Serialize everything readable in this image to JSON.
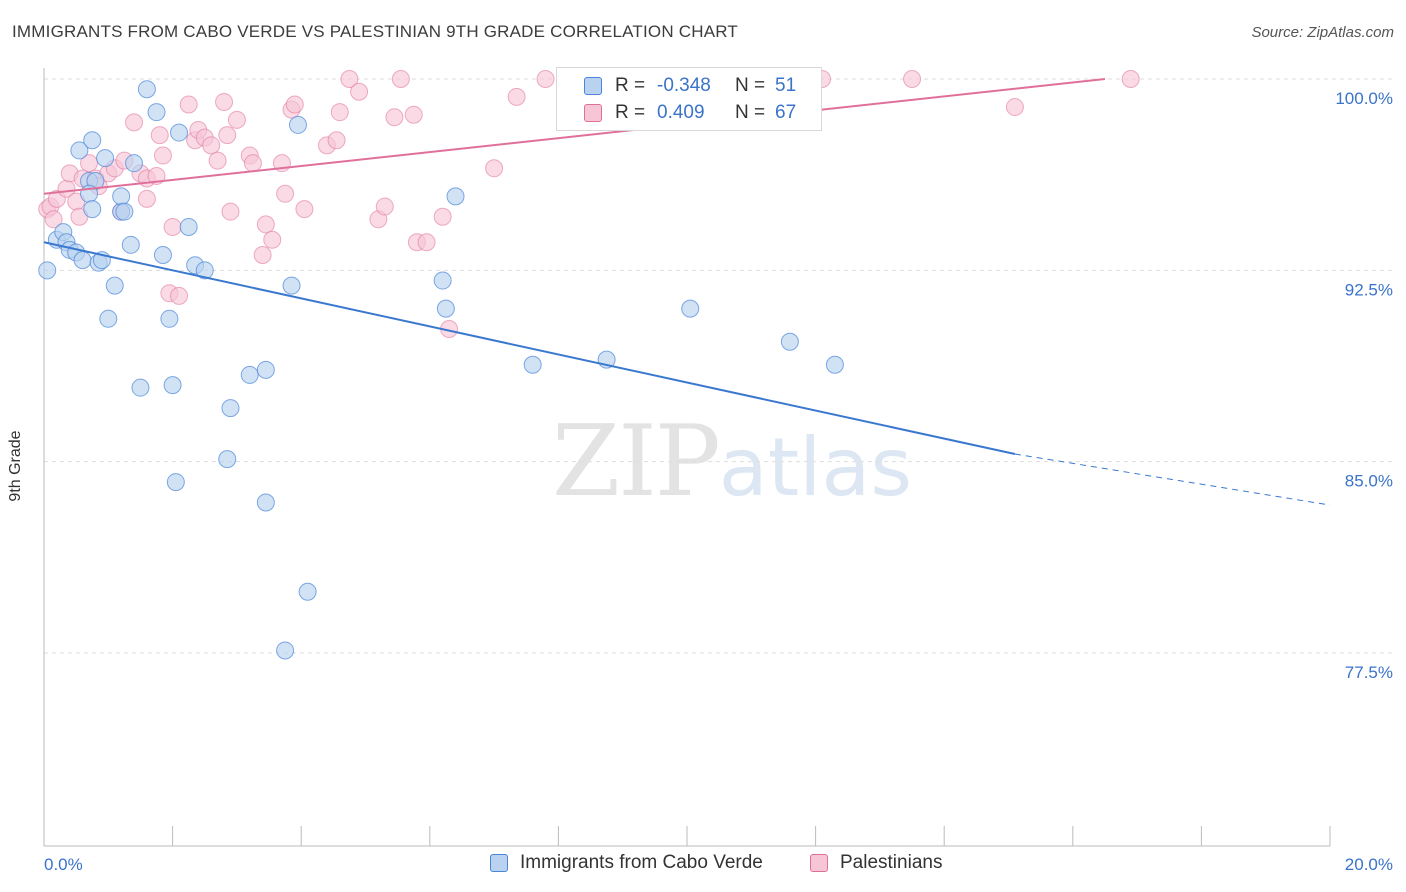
{
  "title": "IMMIGRANTS FROM CABO VERDE VS PALESTINIAN 9TH GRADE CORRELATION CHART",
  "source": "Source: ZipAtlas.com",
  "watermark": {
    "zip": "ZIP",
    "atlas": "atlas"
  },
  "legend": {
    "r_label": "R =",
    "n_label": "N =",
    "series": [
      {
        "name": "Immigrants from Cabo Verde",
        "r": "-0.348",
        "n": "51"
      },
      {
        "name": "Palestinians",
        "r": "0.409",
        "n": "67"
      }
    ]
  },
  "chart_data": {
    "type": "scatter",
    "title": "IMMIGRANTS FROM CABO VERDE VS PALESTINIAN 9TH GRADE CORRELATION CHART",
    "xlabel": "",
    "ylabel": "9th Grade",
    "xlim": [
      0,
      20
    ],
    "ylim": [
      69.5,
      100.5
    ],
    "x_tick_labels": [
      {
        "value": 0,
        "label": "0.0%"
      },
      {
        "value": 20,
        "label": "20.0%"
      }
    ],
    "y_tick_labels": [
      {
        "value": 100,
        "label": "100.0%"
      },
      {
        "value": 92.5,
        "label": "92.5%"
      },
      {
        "value": 85,
        "label": "85.0%"
      },
      {
        "value": 77.5,
        "label": "77.5%"
      }
    ],
    "x_minor_ticks": [
      2,
      4,
      6,
      8,
      10,
      12,
      14,
      16,
      18
    ],
    "colors": {
      "blue": "#4a86d8",
      "blue_fill": "#b9d2f0",
      "pink": "#e0709a",
      "pink_fill": "#f6c6d7"
    },
    "series": [
      {
        "name": "Immigrants from Cabo Verde",
        "color": "#3a78d0",
        "trend": {
          "x": [
            0,
            15.1
          ],
          "y": [
            93.6,
            85.3
          ],
          "dashed_to": [
            20,
            83.3
          ]
        },
        "points": [
          [
            0.05,
            92.5
          ],
          [
            0.2,
            93.7
          ],
          [
            0.3,
            94.0
          ],
          [
            0.35,
            93.6
          ],
          [
            0.4,
            93.3
          ],
          [
            0.5,
            93.2
          ],
          [
            0.55,
            97.2
          ],
          [
            0.6,
            92.9
          ],
          [
            0.7,
            96.0
          ],
          [
            0.8,
            96.0
          ],
          [
            0.7,
            95.5
          ],
          [
            0.75,
            94.9
          ],
          [
            0.75,
            97.6
          ],
          [
            0.85,
            92.8
          ],
          [
            0.9,
            92.9
          ],
          [
            0.95,
            96.9
          ],
          [
            1.0,
            90.6
          ],
          [
            1.1,
            91.9
          ],
          [
            1.2,
            94.8
          ],
          [
            1.2,
            95.4
          ],
          [
            1.25,
            94.8
          ],
          [
            1.35,
            93.5
          ],
          [
            1.4,
            96.7
          ],
          [
            1.5,
            87.9
          ],
          [
            1.6,
            99.6
          ],
          [
            1.75,
            98.7
          ],
          [
            1.85,
            93.1
          ],
          [
            1.95,
            90.6
          ],
          [
            2.0,
            88.0
          ],
          [
            2.05,
            84.2
          ],
          [
            2.1,
            97.9
          ],
          [
            2.25,
            94.2
          ],
          [
            2.35,
            92.7
          ],
          [
            2.5,
            92.5
          ],
          [
            2.85,
            85.1
          ],
          [
            2.9,
            87.1
          ],
          [
            3.2,
            88.4
          ],
          [
            3.45,
            88.6
          ],
          [
            3.45,
            83.4
          ],
          [
            3.75,
            77.6
          ],
          [
            3.85,
            91.9
          ],
          [
            3.95,
            98.2
          ],
          [
            4.1,
            79.9
          ],
          [
            6.2,
            92.1
          ],
          [
            6.25,
            91.0
          ],
          [
            6.4,
            95.4
          ],
          [
            7.6,
            88.8
          ],
          [
            8.75,
            89.0
          ],
          [
            10.05,
            91.0
          ],
          [
            11.6,
            89.7
          ],
          [
            12.3,
            88.8
          ]
        ]
      },
      {
        "name": "Palestinians",
        "color": "#e0709a",
        "trend": {
          "x": [
            0,
            16.5
          ],
          "y": [
            95.5,
            100.0
          ]
        },
        "points": [
          [
            0.05,
            94.9
          ],
          [
            0.1,
            95.0
          ],
          [
            0.15,
            94.5
          ],
          [
            0.2,
            95.3
          ],
          [
            0.35,
            95.7
          ],
          [
            0.4,
            96.3
          ],
          [
            0.5,
            95.2
          ],
          [
            0.55,
            94.6
          ],
          [
            0.6,
            96.1
          ],
          [
            0.7,
            96.7
          ],
          [
            0.8,
            96.1
          ],
          [
            0.85,
            95.8
          ],
          [
            1.0,
            96.3
          ],
          [
            1.1,
            96.5
          ],
          [
            1.2,
            94.8
          ],
          [
            1.25,
            96.8
          ],
          [
            1.4,
            98.3
          ],
          [
            1.5,
            96.3
          ],
          [
            1.6,
            96.1
          ],
          [
            1.6,
            95.3
          ],
          [
            1.75,
            96.2
          ],
          [
            1.8,
            97.8
          ],
          [
            1.85,
            97.0
          ],
          [
            1.95,
            91.6
          ],
          [
            2.0,
            94.2
          ],
          [
            2.1,
            91.5
          ],
          [
            2.25,
            99.0
          ],
          [
            2.35,
            97.6
          ],
          [
            2.4,
            98.0
          ],
          [
            2.5,
            97.7
          ],
          [
            2.6,
            97.4
          ],
          [
            2.7,
            96.8
          ],
          [
            2.8,
            99.1
          ],
          [
            2.85,
            97.8
          ],
          [
            2.9,
            94.8
          ],
          [
            3.0,
            98.4
          ],
          [
            3.2,
            97.0
          ],
          [
            3.25,
            96.7
          ],
          [
            3.4,
            93.1
          ],
          [
            3.45,
            94.3
          ],
          [
            3.55,
            93.7
          ],
          [
            3.7,
            96.7
          ],
          [
            3.75,
            95.5
          ],
          [
            3.85,
            98.8
          ],
          [
            3.9,
            99.0
          ],
          [
            4.05,
            94.9
          ],
          [
            4.4,
            97.4
          ],
          [
            4.55,
            97.6
          ],
          [
            4.6,
            98.7
          ],
          [
            4.75,
            100.0
          ],
          [
            4.9,
            99.5
          ],
          [
            5.2,
            94.5
          ],
          [
            5.3,
            95.0
          ],
          [
            5.45,
            98.5
          ],
          [
            5.55,
            100.0
          ],
          [
            5.75,
            98.6
          ],
          [
            5.8,
            93.6
          ],
          [
            5.95,
            93.6
          ],
          [
            6.2,
            94.6
          ],
          [
            6.3,
            90.2
          ],
          [
            7.0,
            96.5
          ],
          [
            7.35,
            99.3
          ],
          [
            7.8,
            100.0
          ],
          [
            12.1,
            100.0
          ],
          [
            13.5,
            100.0
          ],
          [
            15.1,
            98.9
          ],
          [
            16.9,
            100.0
          ]
        ]
      }
    ]
  }
}
